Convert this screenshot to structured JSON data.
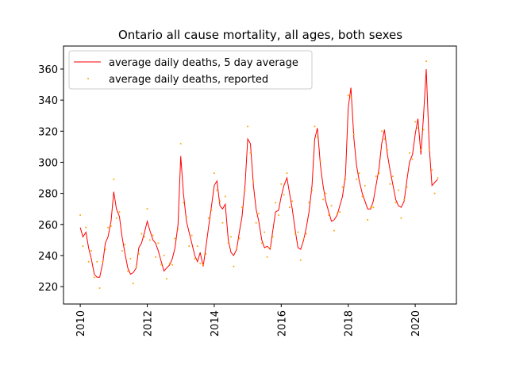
{
  "chart_data": {
    "type": "line",
    "title": "Ontario all cause mortality, all ages, both sexes",
    "x": [
      2010,
      2010.08,
      2010.17,
      2010.25,
      2010.33,
      2010.42,
      2010.5,
      2010.58,
      2010.67,
      2010.75,
      2010.83,
      2010.92,
      2011,
      2011.08,
      2011.17,
      2011.25,
      2011.33,
      2011.42,
      2011.5,
      2011.58,
      2011.67,
      2011.75,
      2011.83,
      2011.92,
      2012,
      2012.08,
      2012.17,
      2012.25,
      2012.33,
      2012.42,
      2012.5,
      2012.58,
      2012.67,
      2012.75,
      2012.83,
      2012.92,
      2013,
      2013.08,
      2013.17,
      2013.25,
      2013.33,
      2013.42,
      2013.5,
      2013.58,
      2013.67,
      2013.75,
      2013.83,
      2013.92,
      2014,
      2014.08,
      2014.17,
      2014.25,
      2014.33,
      2014.42,
      2014.5,
      2014.58,
      2014.67,
      2014.75,
      2014.83,
      2014.92,
      2015,
      2015.08,
      2015.17,
      2015.25,
      2015.33,
      2015.42,
      2015.5,
      2015.58,
      2015.67,
      2015.75,
      2015.83,
      2015.92,
      2016,
      2016.08,
      2016.17,
      2016.25,
      2016.33,
      2016.42,
      2016.5,
      2016.58,
      2016.67,
      2016.75,
      2016.83,
      2016.92,
      2017,
      2017.08,
      2017.17,
      2017.25,
      2017.33,
      2017.42,
      2017.5,
      2017.58,
      2017.67,
      2017.75,
      2017.83,
      2017.92,
      2018,
      2018.08,
      2018.17,
      2018.25,
      2018.33,
      2018.42,
      2018.5,
      2018.58,
      2018.67,
      2018.75,
      2018.83,
      2018.92,
      2019,
      2019.08,
      2019.17,
      2019.25,
      2019.33,
      2019.42,
      2019.5,
      2019.58,
      2019.67,
      2019.75,
      2019.83,
      2019.92,
      2020,
      2020.08,
      2020.17,
      2020.25,
      2020.33,
      2020.42,
      2020.5,
      2020.58,
      2020.67
    ],
    "series": [
      {
        "name": "average daily deaths, 5 day average",
        "kind": "line",
        "color": "#ff0000",
        "values": [
          258,
          252,
          255,
          245,
          238,
          228,
          226,
          226,
          235,
          248,
          252,
          262,
          281,
          270,
          265,
          252,
          242,
          232,
          228,
          229,
          232,
          245,
          248,
          255,
          262,
          256,
          250,
          248,
          243,
          236,
          230,
          232,
          234,
          238,
          245,
          260,
          304,
          280,
          262,
          255,
          248,
          240,
          236,
          242,
          233,
          245,
          258,
          272,
          285,
          288,
          272,
          270,
          273,
          250,
          242,
          240,
          244,
          255,
          265,
          285,
          315,
          312,
          285,
          270,
          262,
          250,
          245,
          246,
          244,
          256,
          268,
          269,
          278,
          285,
          290,
          280,
          270,
          256,
          245,
          244,
          250,
          258,
          268,
          285,
          315,
          322,
          298,
          285,
          275,
          268,
          262,
          263,
          266,
          272,
          278,
          292,
          335,
          348,
          315,
          298,
          288,
          280,
          275,
          270,
          270,
          275,
          285,
          296,
          312,
          321,
          305,
          295,
          286,
          276,
          272,
          271,
          275,
          288,
          300,
          305,
          318,
          328,
          305,
          330,
          360,
          310,
          285,
          287,
          289
        ]
      },
      {
        "name": "average daily deaths, reported",
        "kind": "scatter",
        "color": "#ffa500",
        "values": [
          266,
          246,
          258,
          236,
          243,
          226,
          236,
          219,
          236,
          244,
          258,
          259,
          289,
          264,
          268,
          243,
          247,
          230,
          238,
          222,
          233,
          241,
          254,
          252,
          270,
          250,
          253,
          239,
          248,
          234,
          240,
          225,
          235,
          234,
          251,
          257,
          312,
          274,
          265,
          246,
          253,
          238,
          246,
          235,
          234,
          241,
          264,
          269,
          293,
          282,
          275,
          261,
          278,
          248,
          252,
          233,
          245,
          251,
          271,
          282,
          323,
          306,
          288,
          261,
          267,
          248,
          255,
          239,
          245,
          252,
          274,
          266,
          286,
          279,
          293,
          271,
          275,
          254,
          255,
          237,
          251,
          254,
          274,
          282,
          323,
          316,
          301,
          276,
          280,
          266,
          272,
          256,
          267,
          268,
          284,
          289,
          343,
          342,
          318,
          289,
          293,
          278,
          285,
          263,
          271,
          271,
          291,
          293,
          320,
          315,
          308,
          286,
          291,
          274,
          282,
          264,
          276,
          284,
          306,
          302,
          326,
          322,
          308,
          321,
          365,
          308,
          295,
          280,
          290
        ]
      }
    ],
    "xlim": [
      2009.5,
      2021.23
    ],
    "xticks": [
      2010,
      2012,
      2014,
      2016,
      2018,
      2020
    ],
    "ylim": [
      208.8,
      374.8
    ],
    "yticks": [
      220,
      240,
      260,
      280,
      300,
      320,
      340,
      360
    ],
    "legend": "upper left"
  }
}
